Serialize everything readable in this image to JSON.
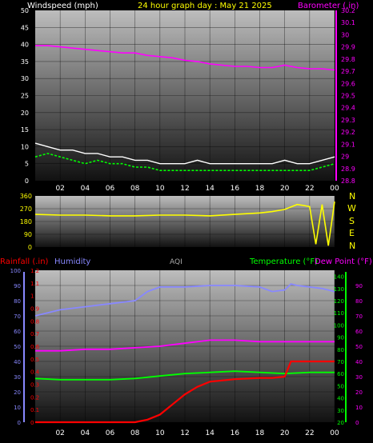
{
  "header": {
    "wind_label": "Windspeed (mph)",
    "title": "24 hour graph day : May 21 2025",
    "baro_label": "Barometer (.in)"
  },
  "lower_header": {
    "rain_label": "Rainfall (.in)",
    "humidity_label": "Humidity",
    "aqi_label": "AQI",
    "temp_label": "Temperature (°F)",
    "dew_label": "Dew Point (°F)"
  },
  "compass": [
    "N",
    "W",
    "S",
    "E",
    "N"
  ],
  "colors": {
    "wind": "#ffffff",
    "gust_avg": "#00ff00",
    "barometer": "#ff00ff",
    "direction": "#ffff00",
    "rain": "#ff0000",
    "humidity": "#8888ff",
    "aqi": "#aaaaaa",
    "temperature": "#00ff00",
    "dewpoint": "#ff00ff",
    "axis_left_lower": "#8888ff",
    "axis_right_lower": "#00ff00"
  },
  "chart_data": [
    {
      "type": "line",
      "name": "wind-baro",
      "x_ticks": [
        "02",
        "04",
        "06",
        "08",
        "10",
        "12",
        "14",
        "16",
        "18",
        "20",
        "22",
        "00"
      ],
      "left_axis": {
        "label": "Windspeed (mph)",
        "range": [
          0,
          50
        ],
        "ticks": [
          "0",
          "5",
          "10",
          "15",
          "20",
          "25",
          "30",
          "35",
          "40",
          "45",
          "50"
        ]
      },
      "right_axis": {
        "label": "Barometer (.in)",
        "range": [
          28.8,
          30.2
        ],
        "ticks": [
          "28.8",
          "28.9",
          "29",
          "29.1",
          "29.2",
          "29.3",
          "29.4",
          "29.5",
          "29.6",
          "29.7",
          "29.8",
          "29.9",
          "30",
          "30.1",
          "30.2"
        ]
      },
      "series": [
        {
          "name": "Barometer (.in)",
          "x": [
            0,
            1,
            2,
            3,
            4,
            5,
            6,
            7,
            8,
            9,
            10,
            11,
            12,
            13,
            14,
            15,
            16,
            17,
            18,
            19,
            20,
            21,
            22,
            23,
            24
          ],
          "values": [
            29.91,
            29.91,
            29.9,
            29.89,
            29.88,
            29.87,
            29.86,
            29.85,
            29.85,
            29.83,
            29.82,
            29.81,
            29.79,
            29.78,
            29.76,
            29.75,
            29.74,
            29.74,
            29.73,
            29.73,
            29.75,
            29.73,
            29.72,
            29.72,
            29.71
          ]
        }
      ],
      "wind_x": [
        0,
        1,
        2,
        3,
        4,
        5,
        6,
        7,
        8,
        9,
        10,
        11,
        12,
        13,
        14,
        15,
        16,
        17,
        18,
        19,
        20,
        21,
        22,
        23,
        24
      ],
      "wind_values": [
        7,
        8,
        7,
        6,
        5,
        6,
        5,
        5,
        4,
        4,
        3,
        3,
        3,
        3,
        3,
        3,
        3,
        3,
        3,
        3,
        3,
        3,
        3,
        4,
        5
      ],
      "wind_gust_values": [
        11,
        10,
        9,
        9,
        8,
        8,
        7,
        7,
        6,
        6,
        5,
        5,
        5,
        6,
        5,
        5,
        5,
        5,
        5,
        5,
        6,
        5,
        5,
        6,
        7
      ]
    },
    {
      "type": "line",
      "name": "wind-direction",
      "x_ticks": [
        "02",
        "04",
        "06",
        "08",
        "10",
        "12",
        "14",
        "16",
        "18",
        "20",
        "22",
        "00"
      ],
      "left_axis": {
        "range": [
          0,
          360
        ],
        "ticks": [
          "0",
          "90",
          "180",
          "270",
          "360"
        ]
      },
      "series": [
        {
          "name": "Wind direction",
          "x": [
            0,
            2,
            4,
            6,
            8,
            10,
            12,
            14,
            16,
            18,
            19,
            20,
            21,
            22,
            22.5,
            23,
            23.5,
            24
          ],
          "values": [
            230,
            225,
            225,
            220,
            220,
            225,
            225,
            220,
            230,
            240,
            250,
            265,
            300,
            285,
            20,
            300,
            10,
            320
          ]
        }
      ]
    },
    {
      "type": "line",
      "name": "rain-humidity-temp",
      "x_ticks": [
        "02",
        "04",
        "06",
        "08",
        "10",
        "12",
        "14",
        "16",
        "18",
        "20",
        "22",
        "00"
      ],
      "left_axis": {
        "label": "Humidity",
        "range": [
          0,
          100
        ],
        "ticks": [
          "0",
          "10",
          "20",
          "30",
          "40",
          "50",
          "60",
          "70",
          "80",
          "90",
          "100"
        ]
      },
      "rain_axis": {
        "label": "Rainfall (.in)",
        "range": [
          0,
          1.2
        ],
        "ticks": [
          "0",
          "0.1",
          "0.2",
          "0.3",
          "0.4",
          "0.5",
          "0.6",
          "0.7",
          "0.8",
          "0.9",
          "1",
          "1.1",
          "1.2"
        ]
      },
      "temp_axis": {
        "label": "Temperature (°F)",
        "range": [
          20,
          145
        ],
        "ticks": [
          "20",
          "30",
          "40",
          "50",
          "60",
          "70",
          "80",
          "90",
          "100",
          "110",
          "120",
          "130",
          "140"
        ]
      },
      "dew_axis": {
        "label": "Dew Point (°F)",
        "range": [
          0,
          100
        ],
        "ticks": [
          "0",
          "10",
          "20",
          "30",
          "40",
          "50",
          "60",
          "70",
          "80",
          "90"
        ]
      },
      "series": [
        {
          "name": "Humidity",
          "x": [
            0,
            2,
            4,
            6,
            8,
            9,
            10,
            12,
            14,
            16,
            18,
            19,
            20,
            20.5,
            21,
            22,
            23,
            24
          ],
          "values": [
            70,
            74,
            76,
            78,
            80,
            86,
            89,
            89,
            90,
            90,
            89,
            86,
            87,
            91,
            90,
            89,
            88,
            86
          ]
        },
        {
          "name": "Rainfall (.in)",
          "x": [
            0,
            8,
            9,
            10,
            11,
            12,
            13,
            14,
            16,
            18,
            19,
            20,
            20.5,
            21,
            22,
            23,
            24
          ],
          "values": [
            0,
            0,
            0.02,
            0.06,
            0.14,
            0.22,
            0.28,
            0.32,
            0.34,
            0.35,
            0.35,
            0.36,
            0.48,
            0.48,
            0.48,
            0.48,
            0.48
          ]
        },
        {
          "name": "Temperature (°F)",
          "x": [
            0,
            2,
            4,
            6,
            8,
            10,
            12,
            14,
            16,
            18,
            20,
            22,
            24
          ],
          "values": [
            56,
            55,
            55,
            55,
            56,
            58,
            60,
            61,
            62,
            61,
            60,
            61,
            61
          ]
        },
        {
          "name": "Dew Point (°F)",
          "x": [
            0,
            2,
            4,
            6,
            8,
            10,
            12,
            14,
            16,
            18,
            20,
            22,
            24
          ],
          "values": [
            47,
            47,
            48,
            48,
            49,
            50,
            52,
            54,
            54,
            53,
            53,
            53,
            53
          ]
        }
      ]
    }
  ]
}
